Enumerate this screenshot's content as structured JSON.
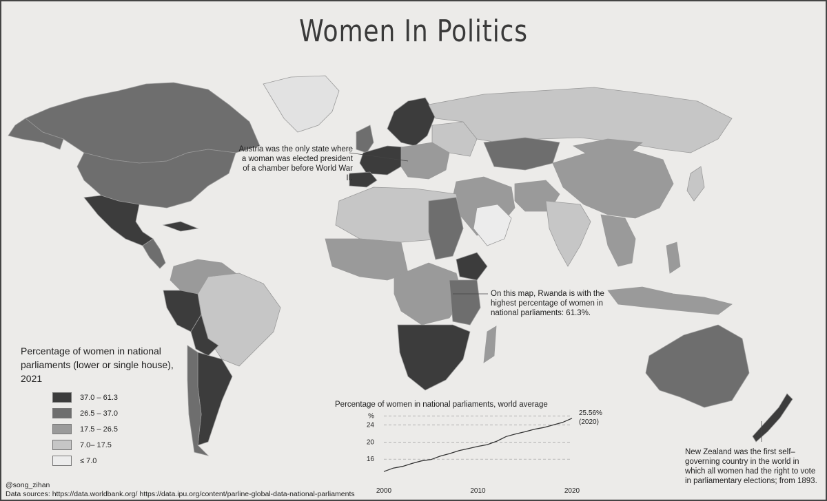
{
  "title": "Women In Politics",
  "notes": {
    "austria": "Austria was the only state where a woman was elected president of a chamber before World War II.",
    "rwanda": "On this map, Rwanda is with the highest percentage of women in national parliaments: 61.3%.",
    "new_zealand": "New Zealand was the first self–governing country in the world in which all women had the right to vote in parliamentary elections; from 1893."
  },
  "legend": {
    "title": "Percentage of women in national parliaments (lower or single house), 2021",
    "items": [
      {
        "label": "37.0 – 61.3",
        "color": "#3c3c3c"
      },
      {
        "label": "26.5 – 37.0",
        "color": "#6e6e6e"
      },
      {
        "label": "17.5 – 26.5",
        "color": "#9a9a9a"
      },
      {
        "label": "7.0– 17.5",
        "color": "#c6c6c6"
      },
      {
        "label": "≤ 7.0",
        "color": "#ececec"
      }
    ]
  },
  "chart_data": {
    "type": "line",
    "title": "Percentage of women in national parliaments, world average",
    "ylabel": "%",
    "yticks": [
      16,
      20,
      24
    ],
    "xticks": [
      2000,
      2010,
      2020
    ],
    "ylim": [
      12,
      26.5
    ],
    "xlim": [
      2000,
      2020
    ],
    "x": [
      2000,
      2001,
      2002,
      2003,
      2004,
      2005,
      2006,
      2007,
      2008,
      2009,
      2010,
      2011,
      2012,
      2013,
      2014,
      2015,
      2016,
      2017,
      2018,
      2019,
      2020
    ],
    "y": [
      13.1,
      13.9,
      14.3,
      15.0,
      15.6,
      15.9,
      16.7,
      17.3,
      18.0,
      18.5,
      19.0,
      19.4,
      20.2,
      21.3,
      21.9,
      22.4,
      23.0,
      23.4,
      24.0,
      24.6,
      25.56
    ],
    "annotation": {
      "value": "25.56%",
      "note": "(2020)"
    }
  },
  "credits": {
    "author": "@song_zihan",
    "sources": "Data sources: https://data.worldbank.org/ https://data.ipu.org/content/parline-global-data-national-parliaments"
  }
}
